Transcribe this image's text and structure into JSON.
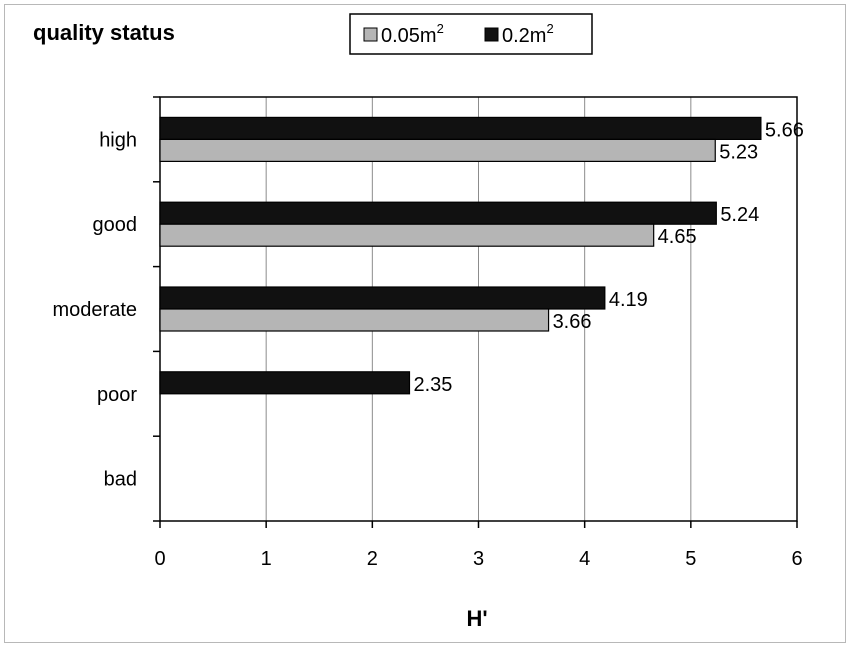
{
  "chart_data": {
    "type": "bar",
    "orientation": "horizontal",
    "title": "quality status",
    "xlabel": "H'",
    "ylabel": "",
    "categories": [
      "high",
      "good",
      "moderate",
      "poor",
      "bad"
    ],
    "series": [
      {
        "name": "0.05m",
        "name_superscript": "2",
        "color": "#b5b5b5",
        "values": [
          5.23,
          4.65,
          3.66,
          null,
          null
        ],
        "value_labels": [
          "5.23",
          "4.65",
          "3.66",
          "",
          ""
        ]
      },
      {
        "name": "0.2m",
        "name_superscript": "2",
        "color": "#111111",
        "values": [
          5.66,
          5.24,
          4.19,
          2.35,
          null
        ],
        "value_labels": [
          "5.66",
          "5.24",
          "4.19",
          "2.35",
          ""
        ]
      }
    ],
    "xlim": [
      0,
      6
    ],
    "xticks": [
      "0",
      "1",
      "2",
      "3",
      "4",
      "5",
      "6"
    ],
    "grid": "vertical",
    "legend_position": "top"
  }
}
